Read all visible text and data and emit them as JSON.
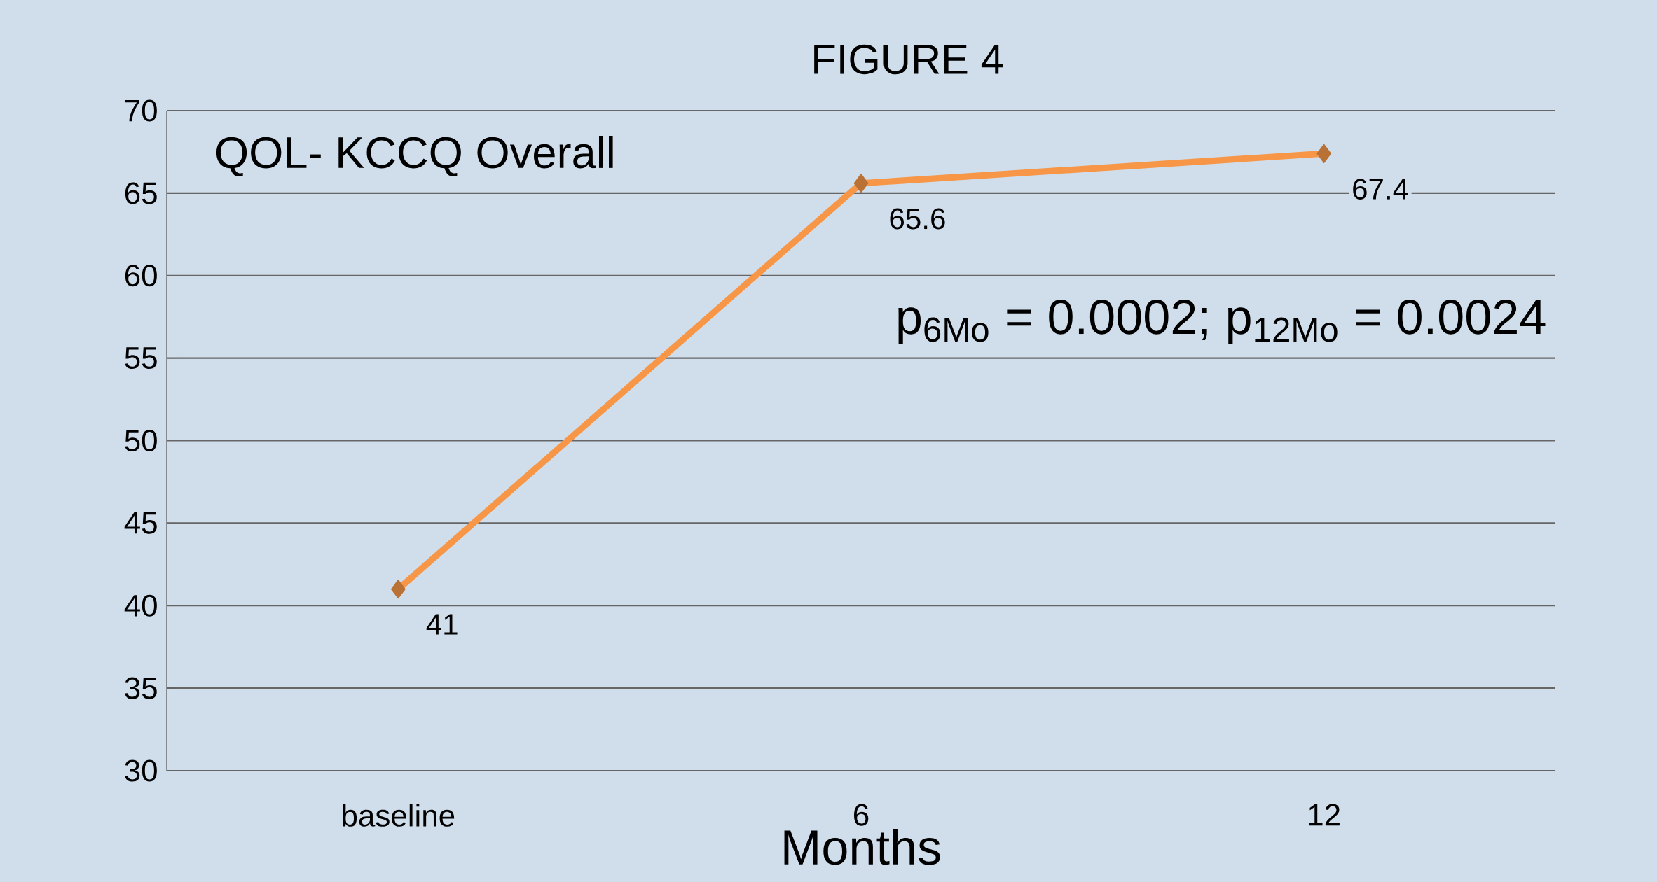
{
  "chart_data": {
    "type": "line",
    "title": "FIGURE 4",
    "xlabel": "Months",
    "annotations": [
      "QOL- KCCQ Overall",
      "p$_{6Mo}$ = 0.0002;  p$_{12Mo}$ = 0.0024"
    ],
    "categories": [
      "baseline",
      "6",
      "12"
    ],
    "values": [
      41,
      65.6,
      67.4
    ],
    "color": "#f79646",
    "ylim": [
      30,
      70
    ],
    "yticks": [
      30,
      35,
      40,
      45,
      50,
      55,
      60,
      65,
      70
    ],
    "grid": "y",
    "marker": "diamond",
    "line_style": "solid",
    "data_labels": true
  }
}
